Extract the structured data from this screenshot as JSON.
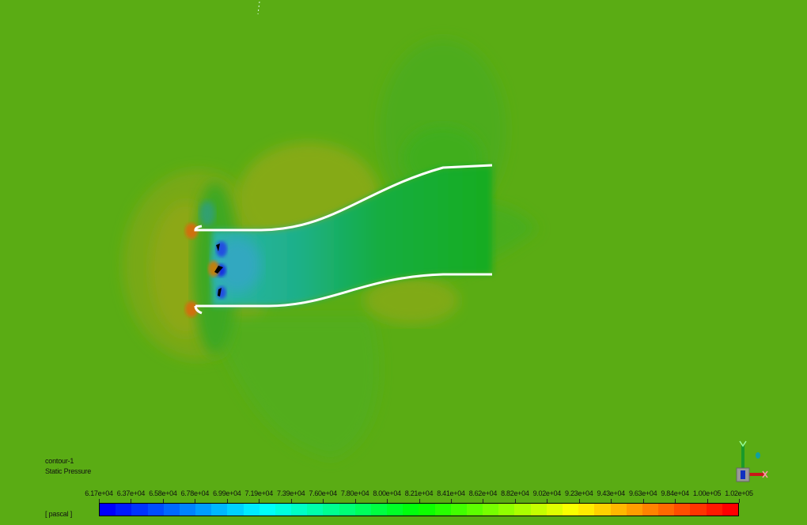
{
  "legend": {
    "title": "contour-1",
    "variable": "Static Pressure",
    "unit": "[ pascal ]",
    "ticks": [
      "6.17e+04",
      "6.37e+04",
      "6.58e+04",
      "6.78e+04",
      "6.99e+04",
      "7.19e+04",
      "7.39e+04",
      "7.60e+04",
      "7.80e+04",
      "8.00e+04",
      "8.21e+04",
      "8.41e+04",
      "8.62e+04",
      "8.82e+04",
      "9.02e+04",
      "9.23e+04",
      "9.43e+04",
      "9.63e+04",
      "9.84e+04",
      "1.00e+05",
      "1.02e+05"
    ],
    "range": [
      61700,
      102000
    ],
    "colormap": "blue-cyan-green-yellow-red",
    "bands": 40
  },
  "colors": {
    "background": "#5aac14",
    "wall": "#ffffff"
  },
  "axis_triad": {
    "icon": "xyz-axis-triad-icon"
  }
}
